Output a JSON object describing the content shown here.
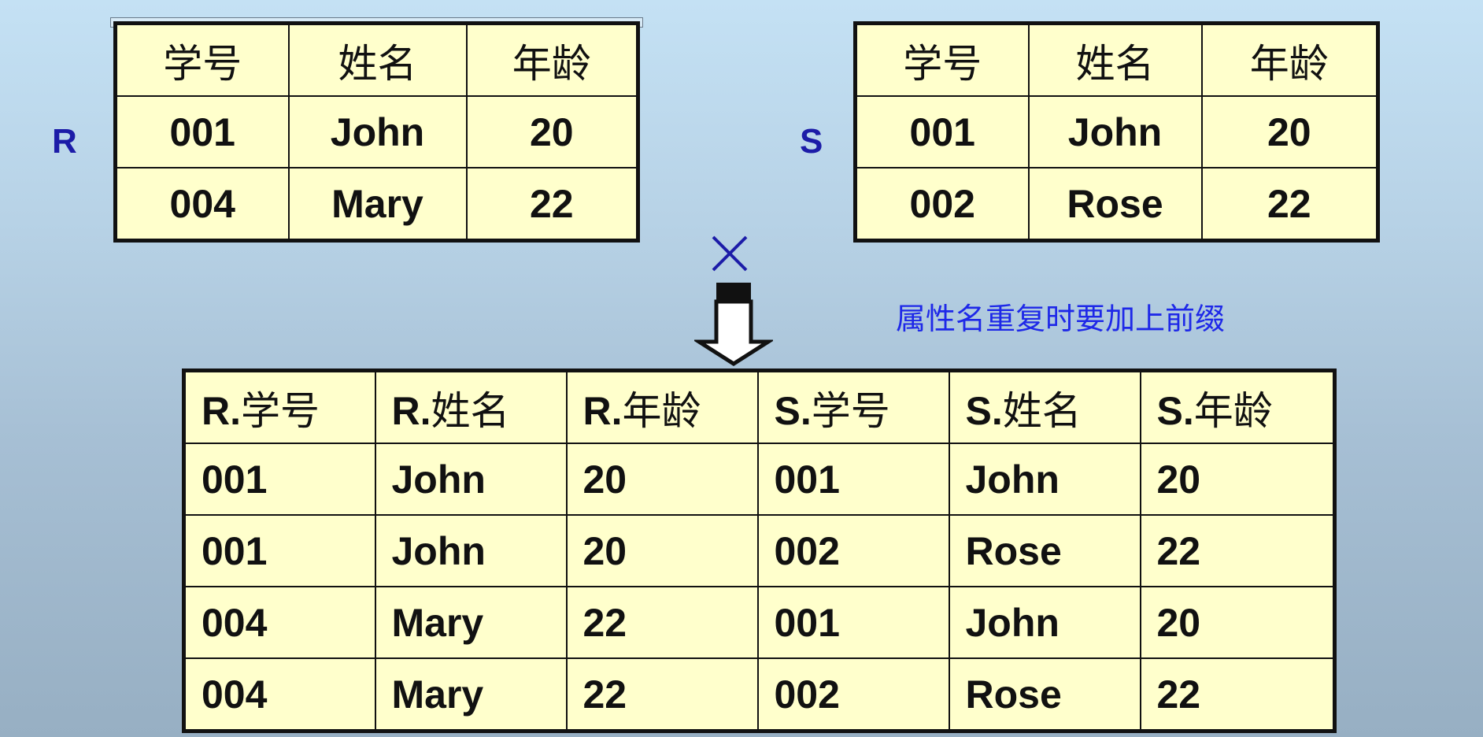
{
  "relation_r": {
    "label": "R",
    "headers": [
      "学号",
      "姓名",
      "年龄"
    ],
    "rows": [
      [
        "001",
        "John",
        "20"
      ],
      [
        "004",
        "Mary",
        "22"
      ]
    ]
  },
  "relation_s": {
    "label": "S",
    "headers": [
      "学号",
      "姓名",
      "年龄"
    ],
    "rows": [
      [
        "001",
        "John",
        "20"
      ],
      [
        "002",
        "Rose",
        "22"
      ]
    ]
  },
  "operator": {
    "symbol": "×",
    "icon": "cross-product-icon"
  },
  "arrow": {
    "icon": "down-arrow-icon"
  },
  "note": "属性名重复时要加上前缀",
  "result": {
    "headers": [
      {
        "prefix": "R.",
        "name": "学号"
      },
      {
        "prefix": "R.",
        "name": "姓名"
      },
      {
        "prefix": "R.",
        "name": "年龄"
      },
      {
        "prefix": "S.",
        "name": "学号"
      },
      {
        "prefix": "S.",
        "name": "姓名"
      },
      {
        "prefix": "S.",
        "name": "年龄"
      }
    ],
    "rows": [
      [
        "001",
        "John",
        "20",
        "001",
        "John",
        "20"
      ],
      [
        "001",
        "John",
        "20",
        "002",
        "Rose",
        "22"
      ],
      [
        "004",
        "Mary",
        "22",
        "001",
        "John",
        "20"
      ],
      [
        "004",
        "Mary",
        "22",
        "002",
        "Rose",
        "22"
      ]
    ]
  },
  "colors": {
    "table_fill": "#ffffcc",
    "label_color": "#1c1ca8",
    "note_color": "#1e28e8"
  }
}
